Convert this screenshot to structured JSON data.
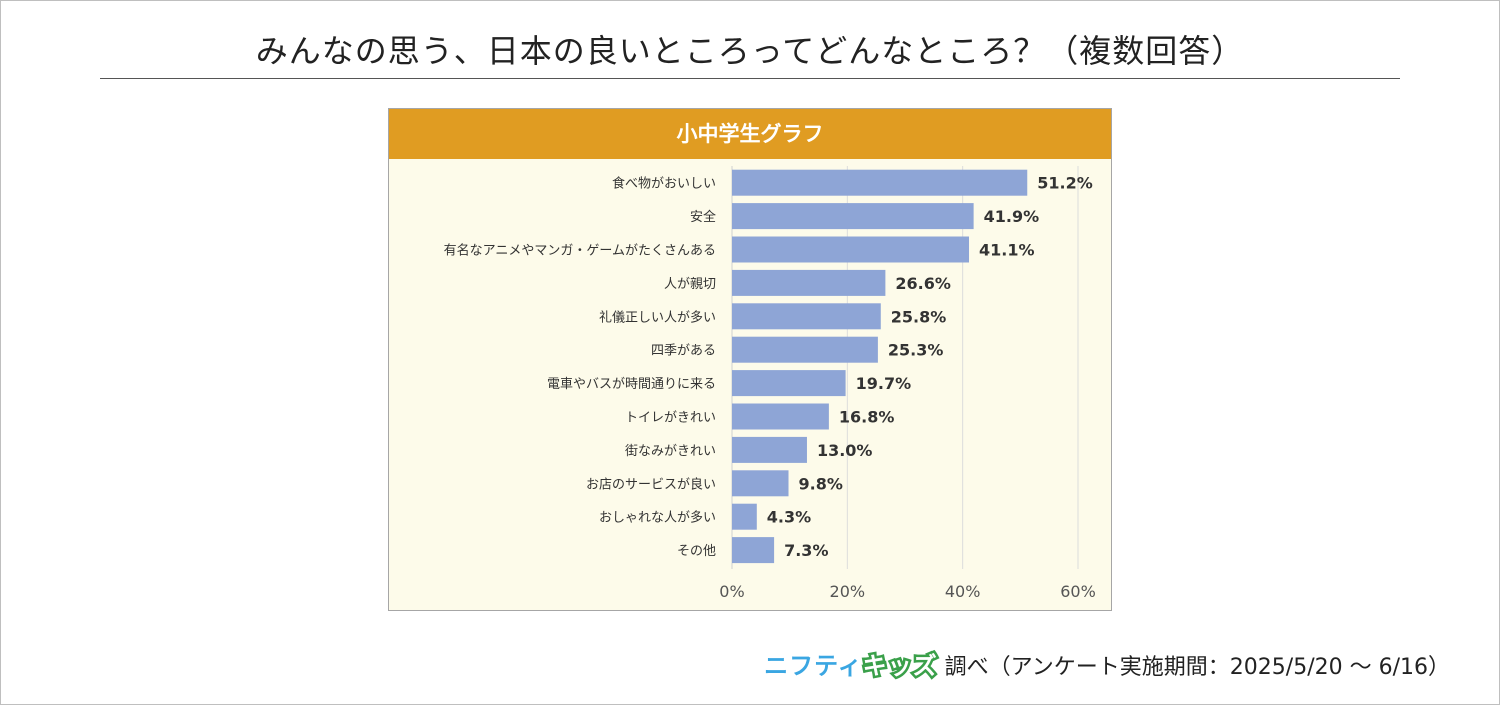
{
  "title": "みんなの思う、日本の良いところってどんなところ？（複数回答）",
  "chart_data": {
    "type": "bar",
    "orientation": "horizontal",
    "title": "小中学生グラフ",
    "categories": [
      "食べ物がおいしい",
      "安全",
      "有名なアニメやマンガ・ゲームがたくさんある",
      "人が親切",
      "礼儀正しい人が多い",
      "四季がある",
      "電車やバスが時間通りに来る",
      "トイレがきれい",
      "街なみがきれい",
      "お店のサービスが良い",
      "おしゃれな人が多い",
      "その他"
    ],
    "values": [
      51.2,
      41.9,
      41.1,
      26.6,
      25.8,
      25.3,
      19.7,
      16.8,
      13.0,
      9.8,
      4.3,
      7.3
    ],
    "value_labels": [
      "51.2%",
      "41.9%",
      "41.1%",
      "26.6%",
      "25.8%",
      "25.3%",
      "19.7%",
      "16.8%",
      "13.0%",
      "9.8%",
      "4.3%",
      "7.3%"
    ],
    "xlim": [
      0,
      60
    ],
    "xticks": [
      "0%",
      "20%",
      "40%",
      "60%"
    ],
    "grid": true,
    "bar_color": "#8ea5d6",
    "header_color": "#e09c22",
    "background_color": "#fdfbea"
  },
  "footer": {
    "brand_part1": "ニフティ",
    "brand_part2": "キッズ",
    "text": "調べ（アンケート実施期間：2025/5/20 ～ 6/16）"
  }
}
